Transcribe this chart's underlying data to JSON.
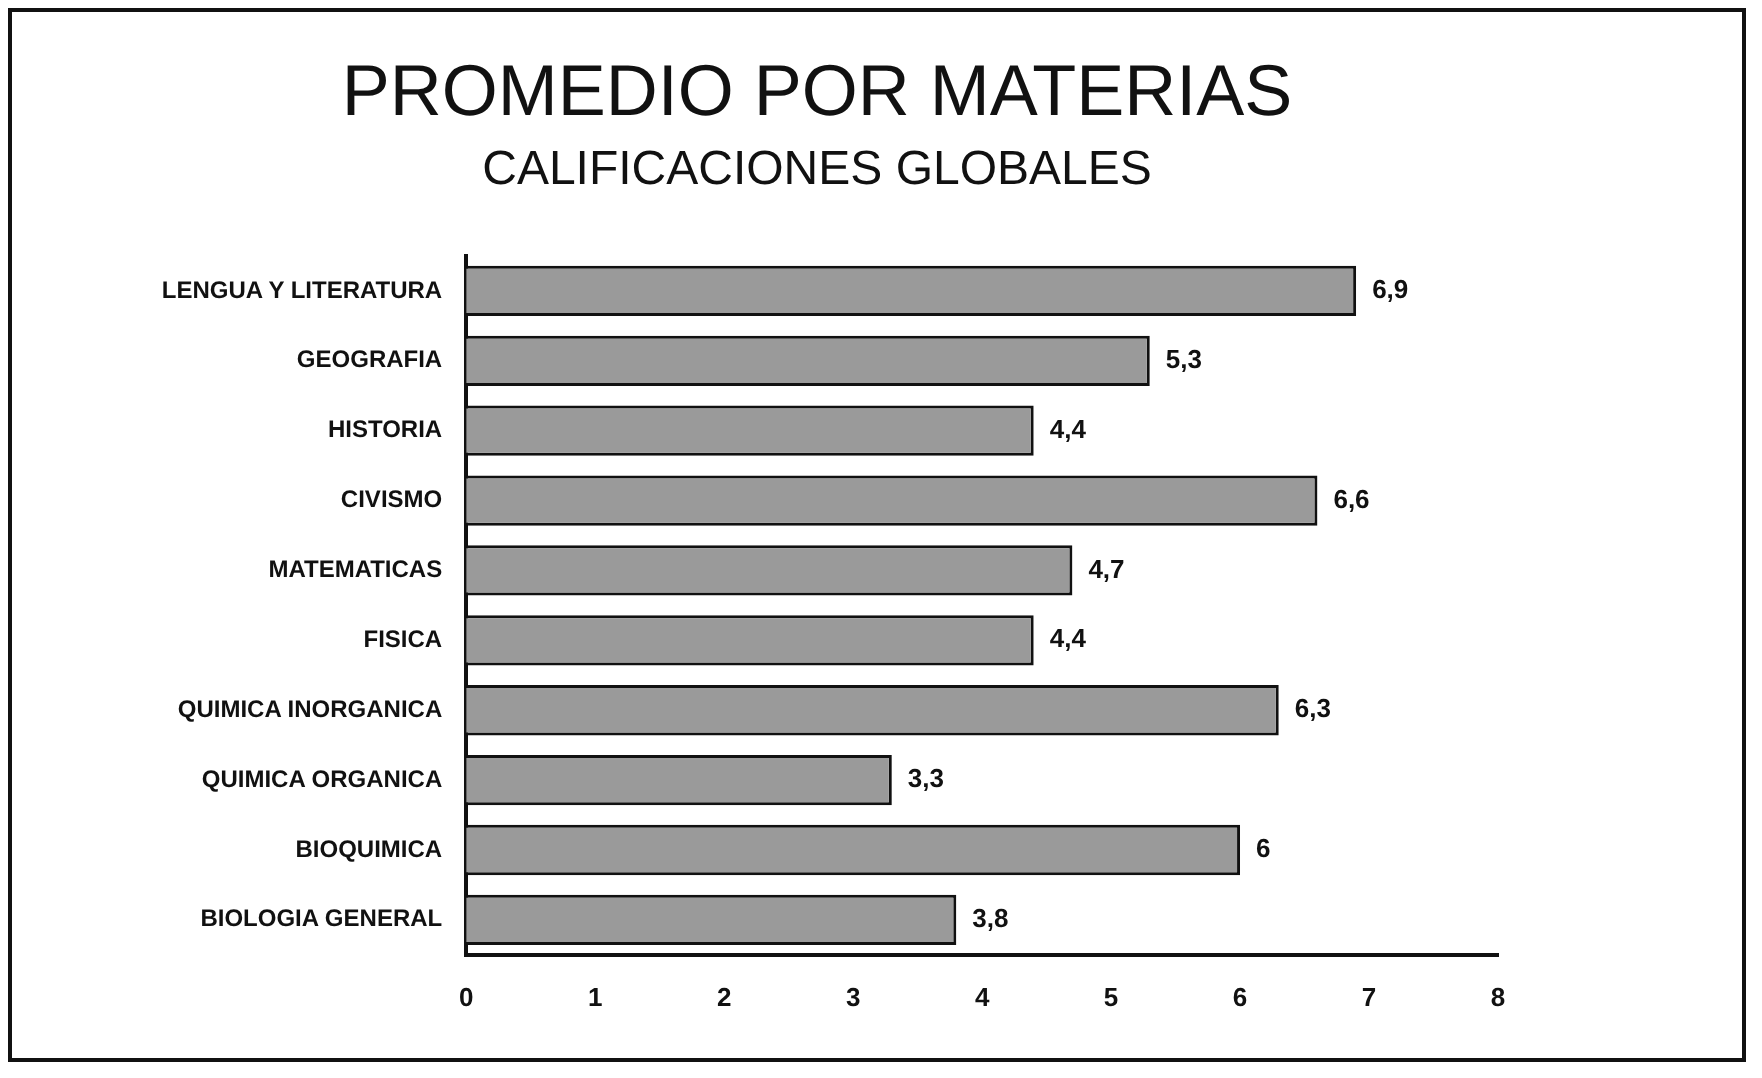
{
  "chart_data": {
    "type": "bar",
    "orientation": "horizontal",
    "title": "PROMEDIO POR MATERIAS",
    "subtitle": "CALIFICACIONES GLOBALES",
    "categories": [
      "LENGUA Y LITERATURA",
      "GEOGRAFIA",
      "HISTORIA",
      "CIVISMO",
      "MATEMATICAS",
      "FISICA",
      "QUIMICA INORGANICA",
      "QUIMICA ORGANICA",
      "BIOQUIMICA",
      "BIOLOGIA GENERAL"
    ],
    "values": [
      6.9,
      5.3,
      4.4,
      6.6,
      4.7,
      4.4,
      6.3,
      3.3,
      6,
      3.8
    ],
    "value_labels": [
      "6,9",
      "5,3",
      "4,4",
      "6,6",
      "4,7",
      "4,4",
      "6,3",
      "3,3",
      "6",
      "3,8"
    ],
    "color": "#9a9a9a",
    "xlim": [
      0,
      8
    ],
    "xticks": [
      0,
      1,
      2,
      3,
      4,
      5,
      6,
      7,
      8
    ],
    "grid": false
  }
}
